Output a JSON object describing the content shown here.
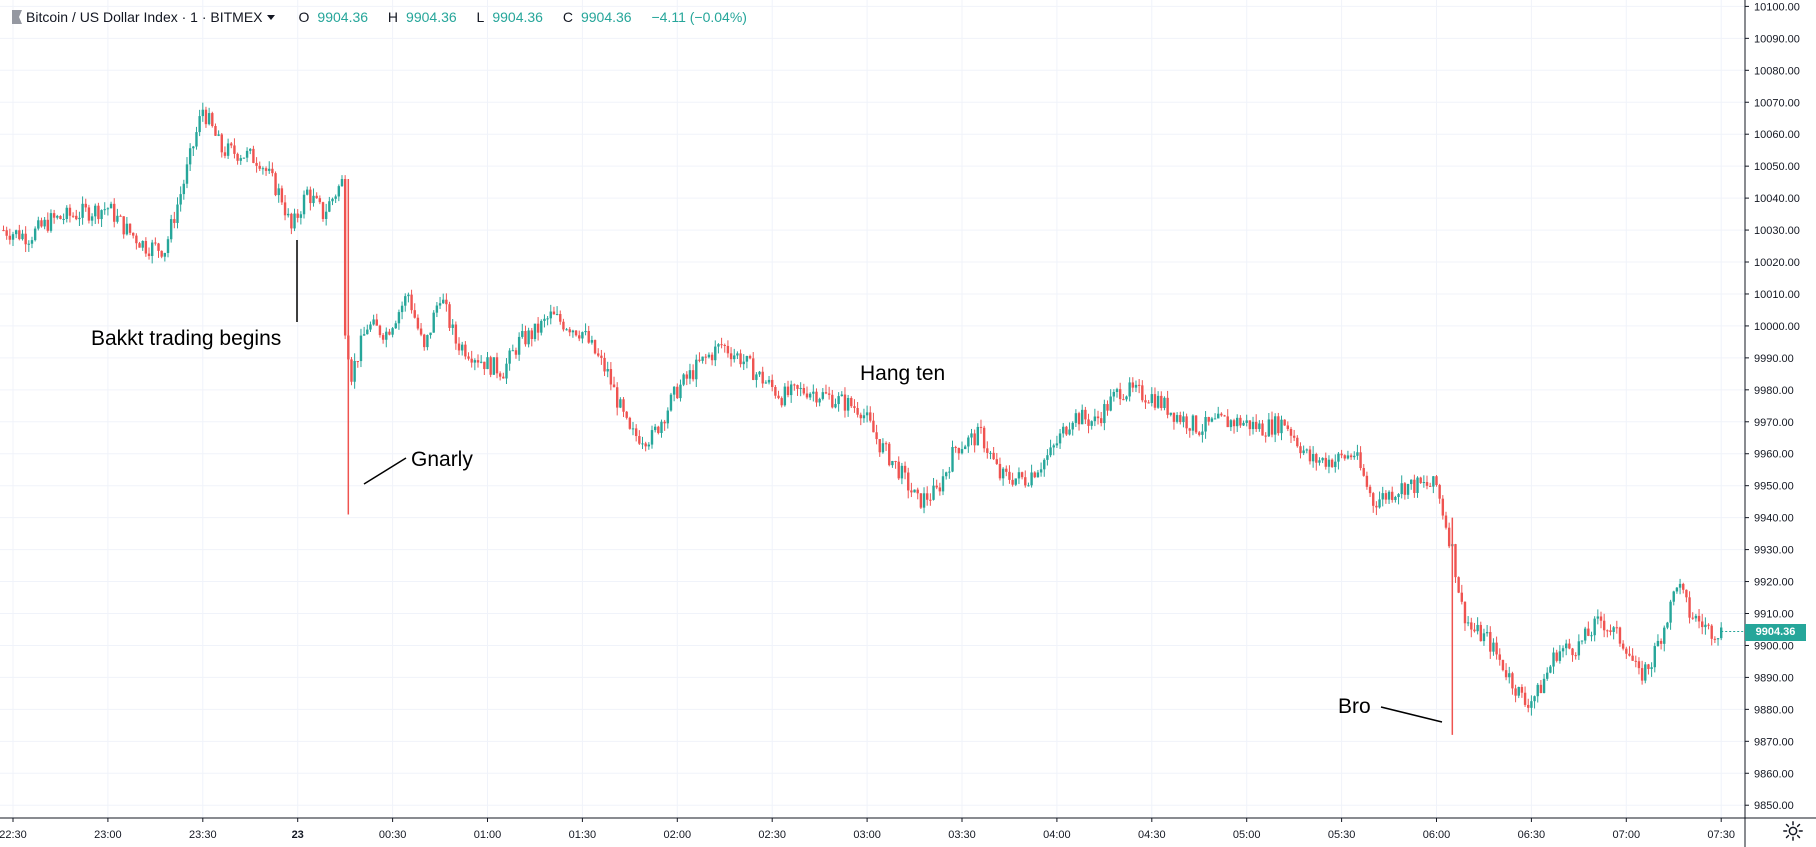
{
  "header": {
    "symbol": "Bitcoin / US Dollar Index · 1 · BITMEX",
    "open_label": "O",
    "open": "9904.36",
    "high_label": "H",
    "high": "9904.36",
    "low_label": "L",
    "low": "9904.36",
    "close_label": "C",
    "close": "9904.36",
    "change": "−4.11 (−0.04%)"
  },
  "last_price": "9904.36",
  "annotations": {
    "bakkt": "Bakkt trading begins",
    "gnarly": "Gnarly",
    "hang_ten": "Hang ten",
    "bro": "Bro"
  },
  "colors": {
    "up": "#26a69a",
    "down": "#ef5350",
    "grid": "#f0f3fa",
    "axis_text": "#131722"
  },
  "chart_data": {
    "type": "candlestick",
    "y_ticks": [
      "10100.00",
      "10090.00",
      "10080.00",
      "10070.00",
      "10060.00",
      "10050.00",
      "10040.00",
      "10030.00",
      "10020.00",
      "10010.00",
      "10000.00",
      "9990.00",
      "9980.00",
      "9970.00",
      "9960.00",
      "9950.00",
      "9940.00",
      "9930.00",
      "9920.00",
      "9910.00",
      "9900.00",
      "9890.00",
      "9880.00",
      "9870.00",
      "9860.00",
      "9850.00"
    ],
    "x_ticks": [
      "22:30",
      "23:00",
      "23:30",
      "23",
      "00:30",
      "01:00",
      "01:30",
      "02:00",
      "02:30",
      "03:00",
      "03:30",
      "04:00",
      "04:30",
      "05:00",
      "05:30",
      "06:00",
      "06:30",
      "07:00",
      "07:30"
    ],
    "ylim": [
      9846,
      10102
    ],
    "close_path": [
      [
        "22:27",
        10030
      ],
      [
        "22:35",
        10028
      ],
      [
        "22:42",
        10033
      ],
      [
        "22:50",
        10035
      ],
      [
        "23:00",
        10037
      ],
      [
        "23:06",
        10030
      ],
      [
        "23:12",
        10025
      ],
      [
        "23:18",
        10024
      ],
      [
        "23:24",
        10045
      ],
      [
        "23:30",
        10068
      ],
      [
        "23:36",
        10055
      ],
      [
        "23:42",
        10054
      ],
      [
        "23:48",
        10052
      ],
      [
        "23:55",
        10040
      ],
      [
        "23:58",
        10030
      ],
      [
        "00:03",
        10042
      ],
      [
        "00:08",
        10035
      ],
      [
        "00:14",
        10045
      ],
      [
        "00:15",
        10000
      ],
      [
        "00:17",
        9985
      ],
      [
        "00:22",
        10000
      ],
      [
        "00:28",
        9998
      ],
      [
        "00:35",
        10010
      ],
      [
        "00:40",
        9992
      ],
      [
        "00:45",
        10010
      ],
      [
        "00:50",
        9995
      ],
      [
        "01:00",
        9988
      ],
      [
        "01:05",
        9986
      ],
      [
        "01:10",
        9995
      ],
      [
        "01:15",
        9998
      ],
      [
        "01:20",
        10003
      ],
      [
        "01:30",
        9998
      ],
      [
        "01:38",
        9985
      ],
      [
        "01:45",
        9966
      ],
      [
        "01:52",
        9965
      ],
      [
        "02:00",
        9980
      ],
      [
        "02:07",
        9988
      ],
      [
        "02:14",
        9994
      ],
      [
        "02:20",
        9990
      ],
      [
        "02:25",
        9985
      ],
      [
        "02:33",
        9978
      ],
      [
        "02:41",
        9980
      ],
      [
        "02:50",
        9977
      ],
      [
        "02:58",
        9974
      ],
      [
        "03:04",
        9963
      ],
      [
        "03:10",
        9955
      ],
      [
        "03:16",
        9945
      ],
      [
        "03:22",
        9948
      ],
      [
        "03:28",
        9962
      ],
      [
        "03:36",
        9966
      ],
      [
        "03:42",
        9953
      ],
      [
        "03:50",
        9952
      ],
      [
        "03:58",
        9960
      ],
      [
        "04:05",
        9972
      ],
      [
        "04:12",
        9970
      ],
      [
        "04:20",
        9980
      ],
      [
        "04:30",
        9978
      ],
      [
        "04:38",
        9972
      ],
      [
        "04:45",
        9968
      ],
      [
        "04:52",
        9970
      ],
      [
        "04:58",
        9970
      ],
      [
        "05:05",
        9968
      ],
      [
        "05:12",
        9970
      ],
      [
        "05:20",
        9958
      ],
      [
        "05:28",
        9958
      ],
      [
        "05:34",
        9960
      ],
      [
        "05:40",
        9945
      ],
      [
        "05:46",
        9948
      ],
      [
        "05:50",
        9950
      ],
      [
        "06:00",
        9950
      ],
      [
        "06:05",
        9930
      ],
      [
        "06:08",
        9912
      ],
      [
        "06:11",
        9905
      ],
      [
        "06:16",
        9902
      ],
      [
        "06:22",
        9892
      ],
      [
        "06:28",
        9882
      ],
      [
        "06:32",
        9885
      ],
      [
        "06:38",
        9898
      ],
      [
        "06:45",
        9900
      ],
      [
        "06:52",
        9908
      ],
      [
        "07:00",
        9900
      ],
      [
        "07:04",
        9890
      ],
      [
        "07:08",
        9895
      ],
      [
        "07:14",
        9912
      ],
      [
        "07:16",
        9920
      ],
      [
        "07:20",
        9910
      ],
      [
        "07:26",
        9905
      ],
      [
        "07:30",
        9904.36
      ]
    ],
    "spikes": [
      {
        "time": "00:16",
        "from": 10046,
        "to": 9941,
        "dir": "down"
      },
      {
        "time": "06:05",
        "from": 9940,
        "to": 9872,
        "dir": "down"
      }
    ]
  }
}
